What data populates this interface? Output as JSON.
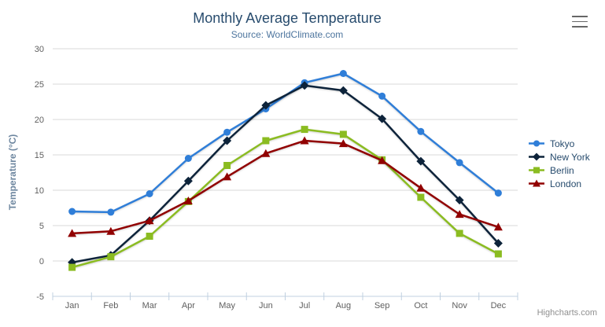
{
  "chart": {
    "credits_label": "Highcharts.com",
    "icons": {
      "context_menu": "hamburger-menu-icon"
    }
  },
  "chart_data": {
    "type": "line",
    "title": "Monthly Average Temperature",
    "subtitle": "Source: WorldClimate.com",
    "categories": [
      "Jan",
      "Feb",
      "Mar",
      "Apr",
      "May",
      "Jun",
      "Jul",
      "Aug",
      "Sep",
      "Oct",
      "Nov",
      "Dec"
    ],
    "xlabel": "",
    "ylabel": "Temperature (°C)",
    "ylim": [
      -5,
      30
    ],
    "ytick_interval": 5,
    "grid": true,
    "legend_position": "right-middle-vertical",
    "series": [
      {
        "name": "Tokyo",
        "color": "#2f7ed8",
        "marker": "circle",
        "values": [
          7.0,
          6.9,
          9.5,
          14.5,
          18.2,
          21.5,
          25.2,
          26.5,
          23.3,
          18.3,
          13.9,
          9.6
        ]
      },
      {
        "name": "New York",
        "color": "#0d233a",
        "marker": "diamond",
        "values": [
          -0.2,
          0.8,
          5.7,
          11.3,
          17.0,
          22.0,
          24.8,
          24.1,
          20.1,
          14.1,
          8.6,
          2.5
        ]
      },
      {
        "name": "Berlin",
        "color": "#8bbc21",
        "marker": "square",
        "values": [
          -0.9,
          0.6,
          3.5,
          8.4,
          13.5,
          17.0,
          18.6,
          17.9,
          14.3,
          9.0,
          3.9,
          1.0
        ]
      },
      {
        "name": "London",
        "color": "#910000",
        "marker": "triangle",
        "values": [
          3.9,
          4.2,
          5.7,
          8.5,
          11.9,
          15.2,
          17.0,
          16.6,
          14.2,
          10.3,
          6.6,
          4.8
        ]
      }
    ],
    "style_colors": {
      "background": "#ffffff",
      "title": "#274b6d",
      "subtitle": "#4d759e",
      "axis_labels": "#606060",
      "y_axis_title": "#6d869f",
      "gridline": "#d8d8d8",
      "axis_line": "#c0d0e0",
      "legend_text": "#274b6d",
      "credits": "#909090",
      "menu_icon": "#666666"
    }
  }
}
